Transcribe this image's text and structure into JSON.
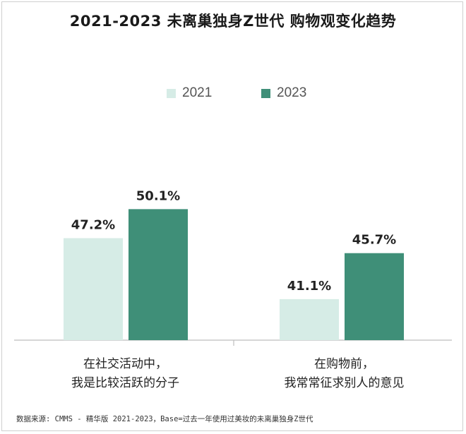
{
  "title": "2021-2023  未离巢独身Z世代  购物观变化趋势",
  "source": "数据来源: CMMS - 精华版 2021-2023，Base=过去一年使用过美妆的未离巢独身Z世代",
  "colors": {
    "series_2021": "#d6ece6",
    "series_2023": "#3f8f78",
    "axis": "#bdbdbd",
    "label": "#222222"
  },
  "chart_data": {
    "type": "bar",
    "title": "2021-2023  未离巢独身Z世代  购物观变化趋势",
    "categories": [
      "在社交活动中，\n我是比较活跃的分子",
      "在购物前，\n我常常征求别人的意见"
    ],
    "series": [
      {
        "name": "2021",
        "values": [
          47.2,
          41.1
        ],
        "labels": [
          "47.2%",
          "41.1%"
        ]
      },
      {
        "name": "2023",
        "values": [
          50.1,
          45.7
        ],
        "labels": [
          "50.1%",
          "45.7%"
        ]
      }
    ],
    "xlabel": "",
    "ylabel": "",
    "ylim": [
      37.0,
      51.2
    ],
    "grid": false,
    "legend": "top-center",
    "unit": "%"
  }
}
